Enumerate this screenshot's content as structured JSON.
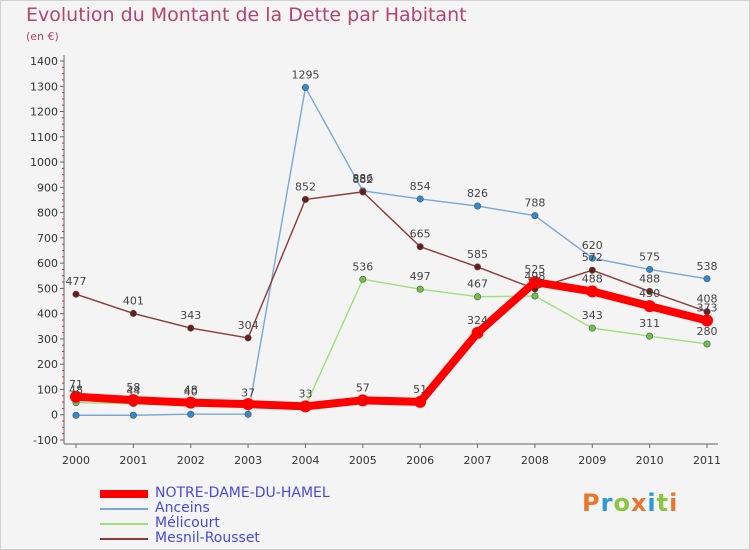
{
  "header": {
    "title": "Evolution du Montant de la Dette par Habitant",
    "unit": "(en €)"
  },
  "logo": {
    "text": "Proxiti",
    "colors": [
      "#e8762c",
      "#2b9ad6",
      "#8cc63f",
      "#e8762c",
      "#2b9ad6",
      "#8cc63f",
      "#e8762c"
    ]
  },
  "chart_data": {
    "type": "line",
    "title": "Evolution du Montant de la Dette par Habitant",
    "subtitle": "(en €)",
    "x": [
      "2000",
      "2001",
      "2002",
      "2003",
      "2004",
      "2005",
      "2006",
      "2007",
      "2008",
      "2009",
      "2010",
      "2011"
    ],
    "ylim": [
      -100,
      1400
    ],
    "yticks": [
      -100,
      0,
      100,
      200,
      300,
      400,
      500,
      600,
      700,
      800,
      900,
      1000,
      1100,
      1200,
      1300,
      1400
    ],
    "grid": false,
    "legend": "bottom-left",
    "series": [
      {
        "name": "NOTRE-DAME-DU-HAMEL",
        "color": "#ff0000",
        "marker": "#ff0000",
        "values": [
          71,
          58,
          48,
          42,
          33,
          57,
          51,
          324,
          525,
          488,
          430,
          373
        ]
      },
      {
        "name": "Anceins",
        "color": "#7aa8d2",
        "marker": "#2f8ad0",
        "values": [
          -2,
          -2,
          2,
          2,
          1295,
          886,
          854,
          826,
          788,
          620,
          575,
          538
        ]
      },
      {
        "name": "Mélicourt",
        "color": "#9ee07a",
        "marker": "#6cc444",
        "values": [
          48,
          44,
          40,
          37,
          33,
          536,
          497,
          467,
          470,
          343,
          311,
          280
        ]
      },
      {
        "name": "Mesnil-Rousset",
        "color": "#8b3a3a",
        "marker": "#6b1b1b",
        "values": [
          477,
          401,
          343,
          304,
          852,
          882,
          665,
          585,
          498,
          572,
          488,
          408
        ]
      }
    ],
    "labels_shown": {
      "NOTRE-DAME-DU-HAMEL": [
        "71",
        "58",
        "48",
        "",
        "",
        "57",
        "51",
        "324",
        "525",
        "488",
        "430",
        "373"
      ],
      "Anceins": [
        "",
        "",
        "",
        "",
        "1295",
        "886",
        "854",
        "826",
        "788",
        "620",
        "575",
        "538"
      ],
      "Mélicourt": [
        "48",
        "44",
        "40",
        "37",
        "33",
        "536",
        "497",
        "467",
        "",
        "343",
        "311",
        "280"
      ],
      "Mesnil-Rousset": [
        "477",
        "401",
        "343",
        "304",
        "852",
        "882",
        "665",
        "585",
        "498",
        "572",
        "488",
        "408"
      ]
    }
  }
}
